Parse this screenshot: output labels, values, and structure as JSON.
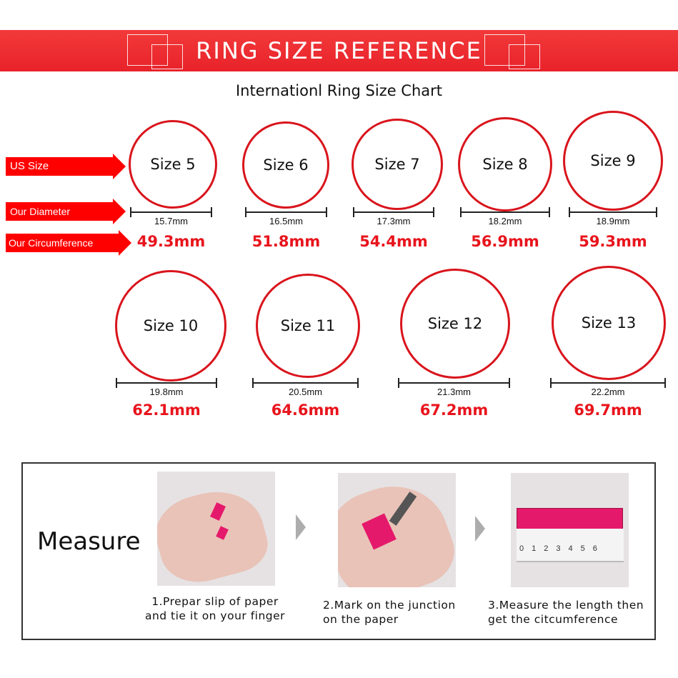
{
  "header": {
    "title": "RING SIZE REFERENCE",
    "subtitle": "Internationl Ring Size Chart"
  },
  "row_labels": {
    "us_size": "US Size",
    "diameter": "Our Diameter",
    "circumference": "Our Circumference"
  },
  "rings": [
    {
      "size": "Size 5",
      "diameter": "15.7mm",
      "circumference": "49.3mm"
    },
    {
      "size": "Size 6",
      "diameter": "16.5mm",
      "circumference": "51.8mm"
    },
    {
      "size": "Size 7",
      "diameter": "17.3mm",
      "circumference": "54.4mm"
    },
    {
      "size": "Size 8",
      "diameter": "18.2mm",
      "circumference": "56.9mm"
    },
    {
      "size": "Size 9",
      "diameter": "18.9mm",
      "circumference": "59.3mm"
    },
    {
      "size": "Size 10",
      "diameter": "19.8mm",
      "circumference": "62.1mm"
    },
    {
      "size": "Size 11",
      "diameter": "20.5mm",
      "circumference": "64.6mm"
    },
    {
      "size": "Size 12",
      "diameter": "21.3mm",
      "circumference": "67.2mm"
    },
    {
      "size": "Size 13",
      "diameter": "22.2mm",
      "circumference": "69.7mm"
    }
  ],
  "measure": {
    "title": "Measure",
    "steps": [
      {
        "line1": "1.Prepar slip of paper",
        "line2": "and tie it on your finger"
      },
      {
        "line1": "2.Mark on the junction",
        "line2": "on the paper"
      },
      {
        "line1": "3.Measure the length then",
        "line2": "get the citcumference"
      }
    ],
    "ruler_ticks": [
      "0",
      "1",
      "2",
      "3",
      "4",
      "5",
      "6"
    ]
  },
  "colors": {
    "accent": "#e8141c",
    "paper": "#e5196b"
  }
}
